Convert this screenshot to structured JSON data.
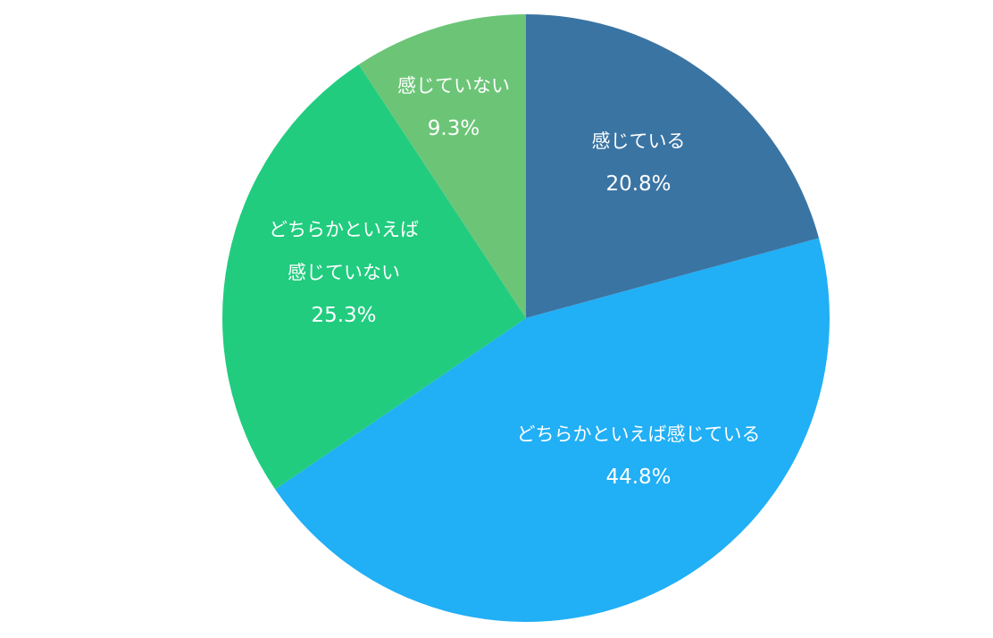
{
  "chart_data": {
    "type": "pie",
    "categories": [
      "感じている",
      "どちらかといえば感じている",
      "どちらかといえば感じていない",
      "感じていない"
    ],
    "values": [
      20.8,
      44.8,
      25.3,
      9.3
    ],
    "value_labels": [
      "20.8%",
      "44.8%",
      "25.3%",
      "9.3%"
    ],
    "colors": [
      "#3a74a3",
      "#21aff5",
      "#21cc7f",
      "#6cc577"
    ]
  }
}
